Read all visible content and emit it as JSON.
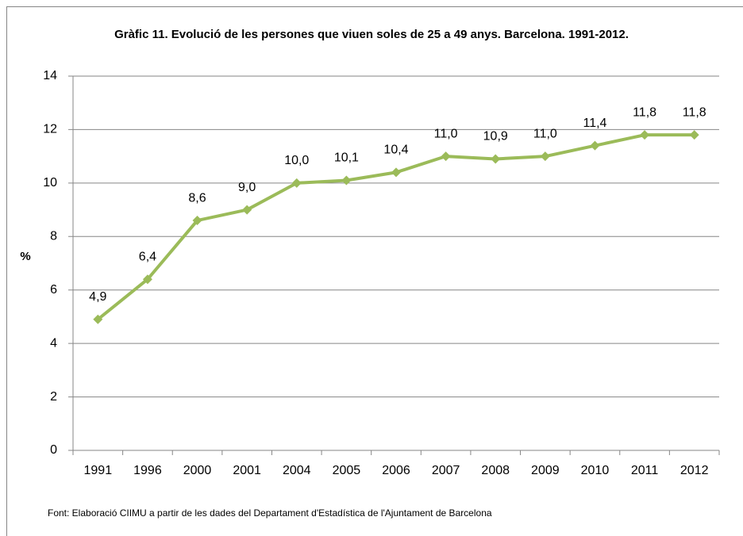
{
  "chart_data": {
    "type": "line",
    "title": "Gràfic 11. Evolució de les persones que viuen soles de 25 a 49 anys. Barcelona. 1991-2012.",
    "ylabel": "%",
    "source": "Font: Elaboració CIIMU a partir de les dades del Departament d'Estadística de l'Ajuntament de Barcelona",
    "categories": [
      "1991",
      "1996",
      "2000",
      "2001",
      "2004",
      "2005",
      "2006",
      "2007",
      "2008",
      "2009",
      "2010",
      "2011",
      "2012"
    ],
    "values": [
      4.9,
      6.4,
      8.6,
      9.0,
      10.0,
      10.1,
      10.4,
      11.0,
      10.9,
      11.0,
      11.4,
      11.8,
      11.8
    ],
    "value_labels": [
      "4,9",
      "6,4",
      "8,6",
      "9,0",
      "10,0",
      "10,1",
      "10,4",
      "11,0",
      "10,9",
      "11,0",
      "11,4",
      "11,8",
      "11,8"
    ],
    "color": "#9bbb59",
    "ylim": [
      0,
      14
    ],
    "yticks": [
      0,
      2,
      4,
      6,
      8,
      10,
      12,
      14
    ],
    "grid": true
  }
}
